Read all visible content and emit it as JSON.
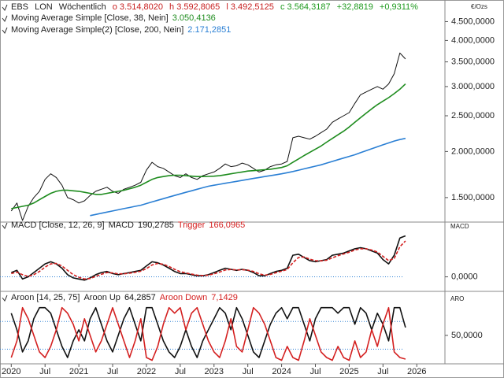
{
  "chart_data": [
    {
      "type": "line",
      "symbol": "EBS",
      "exchange": "LON",
      "interval": "Wöchentlich",
      "ohlc": [
        "o 3.514,8020",
        "h 3.592,8065",
        "l 3.492,5125",
        "c 3.564,3187"
      ],
      "change": "+32,8819",
      "change_pct": "+0,9311%",
      "y_label": "€/Ozs",
      "log_scale": true,
      "x": [
        "2020-01",
        "2020-02",
        "2020-03",
        "2020-04",
        "2020-05",
        "2020-06",
        "2020-07",
        "2020-08",
        "2020-09",
        "2020-10",
        "2020-11",
        "2020-12",
        "2021-01",
        "2021-02",
        "2021-03",
        "2021-04",
        "2021-05",
        "2021-06",
        "2021-07",
        "2021-08",
        "2021-09",
        "2021-10",
        "2021-11",
        "2021-12",
        "2022-01",
        "2022-02",
        "2022-03",
        "2022-04",
        "2022-05",
        "2022-06",
        "2022-07",
        "2022-08",
        "2022-09",
        "2022-10",
        "2022-11",
        "2022-12",
        "2023-01",
        "2023-02",
        "2023-03",
        "2023-04",
        "2023-05",
        "2023-06",
        "2023-07",
        "2023-08",
        "2023-09",
        "2023-10",
        "2023-11",
        "2023-12",
        "2024-01",
        "2024-02",
        "2024-03",
        "2024-04",
        "2024-05",
        "2024-06",
        "2024-07",
        "2024-08",
        "2024-09",
        "2024-10",
        "2024-11",
        "2024-12",
        "2025-01",
        "2025-02",
        "2025-03",
        "2025-04",
        "2025-05",
        "2025-06",
        "2025-07",
        "2025-08",
        "2025-09",
        "2025-10",
        "2025-11"
      ],
      "xlim": [
        "2019-11",
        "2026-06"
      ],
      "ylim": [
        1300,
        5100
      ],
      "yticks": [
        {
          "value": 1500,
          "label": "1.500,0000"
        },
        {
          "value": 2000,
          "label": "2.000,0000"
        },
        {
          "value": 2500,
          "label": "2.500,0000"
        },
        {
          "value": 3000,
          "label": "3.000,0000"
        },
        {
          "value": 3500,
          "label": "3.500,0000"
        },
        {
          "value": 4000,
          "label": "4.000,0000"
        },
        {
          "value": 4500,
          "label": "4.500,0000"
        }
      ],
      "series": [
        {
          "color": "#111111",
          "values": [
            1380,
            1450,
            1300,
            1420,
            1500,
            1560,
            1680,
            1740,
            1700,
            1620,
            1500,
            1480,
            1450,
            1470,
            1520,
            1560,
            1580,
            1600,
            1560,
            1540,
            1580,
            1600,
            1620,
            1650,
            1780,
            1870,
            1820,
            1800,
            1760,
            1720,
            1700,
            1740,
            1700,
            1680,
            1720,
            1740,
            1760,
            1800,
            1850,
            1820,
            1830,
            1860,
            1840,
            1800,
            1760,
            1780,
            1820,
            1840,
            1850,
            1880,
            2180,
            2200,
            2180,
            2160,
            2200,
            2250,
            2300,
            2400,
            2450,
            2500,
            2550,
            2700,
            2850,
            2900,
            2950,
            3000,
            2950,
            3050,
            3250,
            3700,
            3564
          ]
        },
        {
          "name": "Moving Average Simple [Close, 38, Nein]",
          "last_label": "3.050,4136",
          "color": "#1e8c1e",
          "values": [
            1400,
            1410,
            1420,
            1430,
            1450,
            1480,
            1510,
            1540,
            1560,
            1570,
            1570,
            1565,
            1560,
            1550,
            1540,
            1530,
            1530,
            1540,
            1550,
            1560,
            1570,
            1585,
            1600,
            1620,
            1650,
            1680,
            1700,
            1710,
            1720,
            1725,
            1725,
            1720,
            1715,
            1710,
            1710,
            1712,
            1715,
            1720,
            1730,
            1740,
            1750,
            1760,
            1770,
            1775,
            1780,
            1785,
            1790,
            1800,
            1810,
            1830,
            1870,
            1910,
            1950,
            1990,
            2030,
            2070,
            2120,
            2170,
            2220,
            2270,
            2330,
            2400,
            2470,
            2540,
            2610,
            2680,
            2740,
            2800,
            2870,
            2950,
            3050
          ]
        },
        {
          "name": "Moving Average Simple(2) [Close, 200, Nein]",
          "last_label": "2.171,2851",
          "color": "#2a7fd4",
          "values": [
            null,
            null,
            null,
            null,
            null,
            null,
            null,
            null,
            null,
            null,
            null,
            null,
            null,
            null,
            1340,
            1350,
            1360,
            1370,
            1380,
            1390,
            1400,
            1410,
            1420,
            1430,
            1445,
            1460,
            1475,
            1490,
            1505,
            1520,
            1535,
            1550,
            1565,
            1580,
            1595,
            1610,
            1620,
            1630,
            1640,
            1650,
            1660,
            1670,
            1680,
            1690,
            1700,
            1710,
            1720,
            1730,
            1740,
            1752,
            1765,
            1780,
            1795,
            1810,
            1825,
            1840,
            1860,
            1880,
            1900,
            1920,
            1940,
            1960,
            1985,
            2010,
            2035,
            2060,
            2085,
            2110,
            2135,
            2155,
            2171
          ]
        }
      ]
    },
    {
      "type": "line",
      "title": "MACD [Close, 12, 26, 9]",
      "y_label": "MACD",
      "x": [
        "2020-01",
        "2020-02",
        "2020-03",
        "2020-04",
        "2020-05",
        "2020-06",
        "2020-07",
        "2020-08",
        "2020-09",
        "2020-10",
        "2020-11",
        "2020-12",
        "2021-01",
        "2021-02",
        "2021-03",
        "2021-04",
        "2021-05",
        "2021-06",
        "2021-07",
        "2021-08",
        "2021-09",
        "2021-10",
        "2021-11",
        "2021-12",
        "2022-01",
        "2022-02",
        "2022-03",
        "2022-04",
        "2022-05",
        "2022-06",
        "2022-07",
        "2022-08",
        "2022-09",
        "2022-10",
        "2022-11",
        "2022-12",
        "2023-01",
        "2023-02",
        "2023-03",
        "2023-04",
        "2023-05",
        "2023-06",
        "2023-07",
        "2023-08",
        "2023-09",
        "2023-10",
        "2023-11",
        "2023-12",
        "2024-01",
        "2024-02",
        "2024-03",
        "2024-04",
        "2024-05",
        "2024-06",
        "2024-07",
        "2024-08",
        "2024-09",
        "2024-10",
        "2024-11",
        "2024-12",
        "2025-01",
        "2025-02",
        "2025-03",
        "2025-04",
        "2025-05",
        "2025-06",
        "2025-07",
        "2025-08",
        "2025-09",
        "2025-10",
        "2025-11"
      ],
      "xlim": [
        "2019-11",
        "2026-06"
      ],
      "ylim": [
        -60,
        250
      ],
      "yticks": [
        {
          "value": 0,
          "label": "0,0000"
        }
      ],
      "reference_lines": [
        0
      ],
      "series": [
        {
          "name": "MACD",
          "last_label": "190,2785",
          "color": "#111111",
          "values": [
            20,
            30,
            -10,
            0,
            20,
            40,
            60,
            70,
            60,
            40,
            10,
            -5,
            -10,
            -15,
            -5,
            10,
            20,
            25,
            15,
            10,
            15,
            20,
            25,
            30,
            50,
            70,
            65,
            55,
            40,
            25,
            15,
            15,
            10,
            5,
            5,
            10,
            20,
            30,
            40,
            35,
            30,
            35,
            30,
            20,
            5,
            5,
            15,
            25,
            30,
            40,
            100,
            105,
            90,
            75,
            70,
            75,
            80,
            100,
            105,
            110,
            120,
            130,
            135,
            130,
            120,
            110,
            80,
            60,
            100,
            180,
            190
          ]
        },
        {
          "name": "Trigger",
          "last_label": "166,0965",
          "color": "#d42020",
          "dashed": true,
          "values": [
            15,
            22,
            10,
            2,
            10,
            25,
            45,
            60,
            62,
            50,
            30,
            10,
            -2,
            -10,
            -8,
            2,
            12,
            20,
            18,
            14,
            14,
            17,
            21,
            26,
            38,
            55,
            62,
            58,
            48,
            35,
            24,
            18,
            13,
            8,
            6,
            8,
            14,
            22,
            32,
            34,
            32,
            33,
            31,
            25,
            14,
            8,
            11,
            19,
            26,
            34,
            65,
            90,
            92,
            82,
            75,
            74,
            77,
            88,
            98,
            106,
            114,
            124,
            130,
            130,
            124,
            115,
            95,
            75,
            85,
            140,
            166
          ]
        }
      ]
    },
    {
      "type": "line",
      "title": "Aroon [14, 25, 75]",
      "y_label": "ARO",
      "x": [
        "2020-01",
        "2020-02",
        "2020-03",
        "2020-04",
        "2020-05",
        "2020-06",
        "2020-07",
        "2020-08",
        "2020-09",
        "2020-10",
        "2020-11",
        "2020-12",
        "2021-01",
        "2021-02",
        "2021-03",
        "2021-04",
        "2021-05",
        "2021-06",
        "2021-07",
        "2021-08",
        "2021-09",
        "2021-10",
        "2021-11",
        "2021-12",
        "2022-01",
        "2022-02",
        "2022-03",
        "2022-04",
        "2022-05",
        "2022-06",
        "2022-07",
        "2022-08",
        "2022-09",
        "2022-10",
        "2022-11",
        "2022-12",
        "2023-01",
        "2023-02",
        "2023-03",
        "2023-04",
        "2023-05",
        "2023-06",
        "2023-07",
        "2023-08",
        "2023-09",
        "2023-10",
        "2023-11",
        "2023-12",
        "2024-01",
        "2024-02",
        "2024-03",
        "2024-04",
        "2024-05",
        "2024-06",
        "2024-07",
        "2024-08",
        "2024-09",
        "2024-10",
        "2024-11",
        "2024-12",
        "2025-01",
        "2025-02",
        "2025-03",
        "2025-04",
        "2025-05",
        "2025-06",
        "2025-07",
        "2025-08",
        "2025-09",
        "2025-10",
        "2025-11"
      ],
      "xlim": [
        "2019-11",
        "2026-06"
      ],
      "ylim": [
        0,
        128
      ],
      "xticks": [
        {
          "value": "2020-01",
          "label": "2020"
        },
        {
          "value": "2020-07",
          "label": "Jul"
        },
        {
          "value": "2021-01",
          "label": "2021"
        },
        {
          "value": "2021-07",
          "label": "Jul"
        },
        {
          "value": "2022-01",
          "label": "2022"
        },
        {
          "value": "2022-07",
          "label": "Jul"
        },
        {
          "value": "2023-01",
          "label": "2023"
        },
        {
          "value": "2023-07",
          "label": "Jul"
        },
        {
          "value": "2024-01",
          "label": "2024"
        },
        {
          "value": "2024-07",
          "label": "Jul"
        },
        {
          "value": "2025-01",
          "label": "2025"
        },
        {
          "value": "2025-07",
          "label": "Jul"
        },
        {
          "value": "2026-01",
          "label": "2026"
        }
      ],
      "yticks": [
        {
          "value": 50,
          "label": "50,0000"
        }
      ],
      "reference_lines": [
        25,
        75
      ],
      "series": [
        {
          "name": "Aroon Up",
          "last_label": "64,2857",
          "color": "#111111",
          "values": [
            90,
            60,
            20,
            40,
            80,
            100,
            100,
            90,
            60,
            30,
            10,
            40,
            60,
            40,
            80,
            100,
            70,
            40,
            20,
            50,
            80,
            100,
            70,
            40,
            100,
            100,
            70,
            40,
            20,
            10,
            30,
            60,
            30,
            10,
            40,
            60,
            80,
            100,
            90,
            60,
            100,
            80,
            50,
            20,
            10,
            40,
            70,
            90,
            100,
            80,
            100,
            100,
            70,
            40,
            80,
            100,
            100,
            100,
            90,
            100,
            100,
            70,
            100,
            90,
            60,
            90,
            70,
            40,
            100,
            100,
            64.2857
          ]
        },
        {
          "name": "Aroon Down",
          "last_label": "7,1429",
          "color": "#d42020",
          "values": [
            10,
            40,
            100,
            80,
            50,
            20,
            10,
            30,
            60,
            100,
            90,
            70,
            40,
            80,
            50,
            20,
            40,
            70,
            100,
            70,
            40,
            10,
            40,
            80,
            10,
            5,
            30,
            70,
            100,
            90,
            100,
            60,
            90,
            100,
            70,
            40,
            20,
            10,
            40,
            80,
            30,
            20,
            60,
            100,
            90,
            70,
            40,
            10,
            5,
            30,
            10,
            5,
            40,
            80,
            50,
            20,
            10,
            5,
            30,
            10,
            5,
            40,
            10,
            20,
            60,
            30,
            70,
            100,
            20,
            10,
            7.1429
          ]
        }
      ]
    }
  ]
}
